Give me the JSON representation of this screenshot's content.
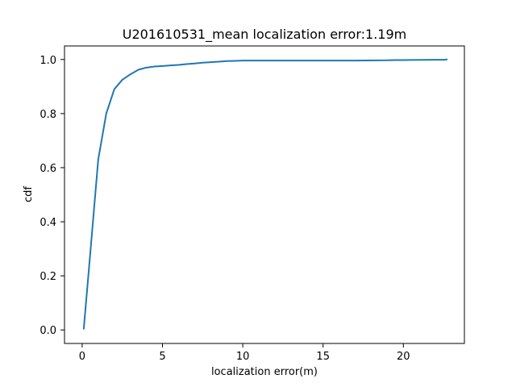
{
  "chart_data": {
    "type": "line",
    "title": "U201610531_mean localization error:1.19m",
    "xlabel": "localization error(m)",
    "ylabel": "cdf",
    "xlim": [
      -1.1,
      23.8
    ],
    "ylim": [
      -0.05,
      1.05
    ],
    "x_ticks": [
      0,
      5,
      10,
      15,
      20
    ],
    "y_ticks": [
      0.0,
      0.2,
      0.4,
      0.6,
      0.8,
      1.0
    ],
    "x_tick_labels": [
      "0",
      "5",
      "10",
      "15",
      "20"
    ],
    "y_tick_labels": [
      "0.0",
      "0.2",
      "0.4",
      "0.6",
      "0.8",
      "1.0"
    ],
    "grid": false,
    "line_color": "#1f77b4",
    "series": [
      {
        "x": [
          0.1,
          0.5,
          1.0,
          1.5,
          2.0,
          2.5,
          3.0,
          3.5,
          4.0,
          4.5,
          5.0,
          5.5,
          6.0,
          6.5,
          7.0,
          7.5,
          8.0,
          8.5,
          9.0,
          9.5,
          10.0,
          12.0,
          15.0,
          17.0,
          19.0,
          19.5,
          20.0,
          22.0,
          22.5,
          22.7
        ],
        "y": [
          0.005,
          0.28,
          0.63,
          0.8,
          0.89,
          0.925,
          0.945,
          0.962,
          0.97,
          0.974,
          0.976,
          0.978,
          0.98,
          0.983,
          0.985,
          0.988,
          0.99,
          0.992,
          0.994,
          0.995,
          0.996,
          0.996,
          0.996,
          0.996,
          0.997,
          0.998,
          0.998,
          0.999,
          0.999,
          1.0
        ]
      }
    ]
  }
}
